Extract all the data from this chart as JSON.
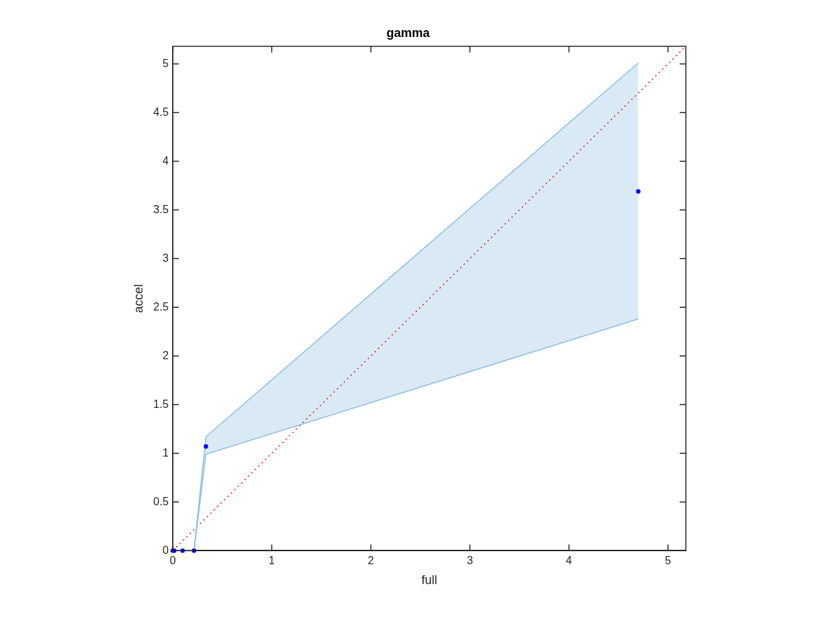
{
  "chart_data": {
    "type": "scatter",
    "title": "gamma",
    "xlabel": "full",
    "ylabel": "accel",
    "xlim": [
      0,
      5.18
    ],
    "ylim": [
      0,
      5.18
    ],
    "xticks": [
      0,
      1,
      2,
      3,
      4,
      5
    ],
    "yticks": [
      0,
      0.5,
      1,
      1.5,
      2,
      2.5,
      3,
      3.5,
      4,
      4.5,
      5
    ],
    "grid": false,
    "legend": false,
    "marker": "circle",
    "series": [
      {
        "type": "scatter",
        "color": "#0000ff",
        "x": [
          0,
          0.015,
          0.1,
          0.215,
          0.335,
          4.7
        ],
        "values": [
          0,
          0,
          0,
          0,
          1.07,
          3.69
        ],
        "lower": [
          0,
          0,
          0,
          0,
          0.99,
          2.38
        ],
        "upper": [
          0,
          0,
          0,
          0,
          1.17,
          5.01
        ]
      },
      {
        "type": "line",
        "color": "#ff0000",
        "x": [
          0,
          5.18
        ],
        "values": [
          0,
          5.18
        ],
        "line_style": "dotted",
        "marker": "none"
      }
    ]
  }
}
